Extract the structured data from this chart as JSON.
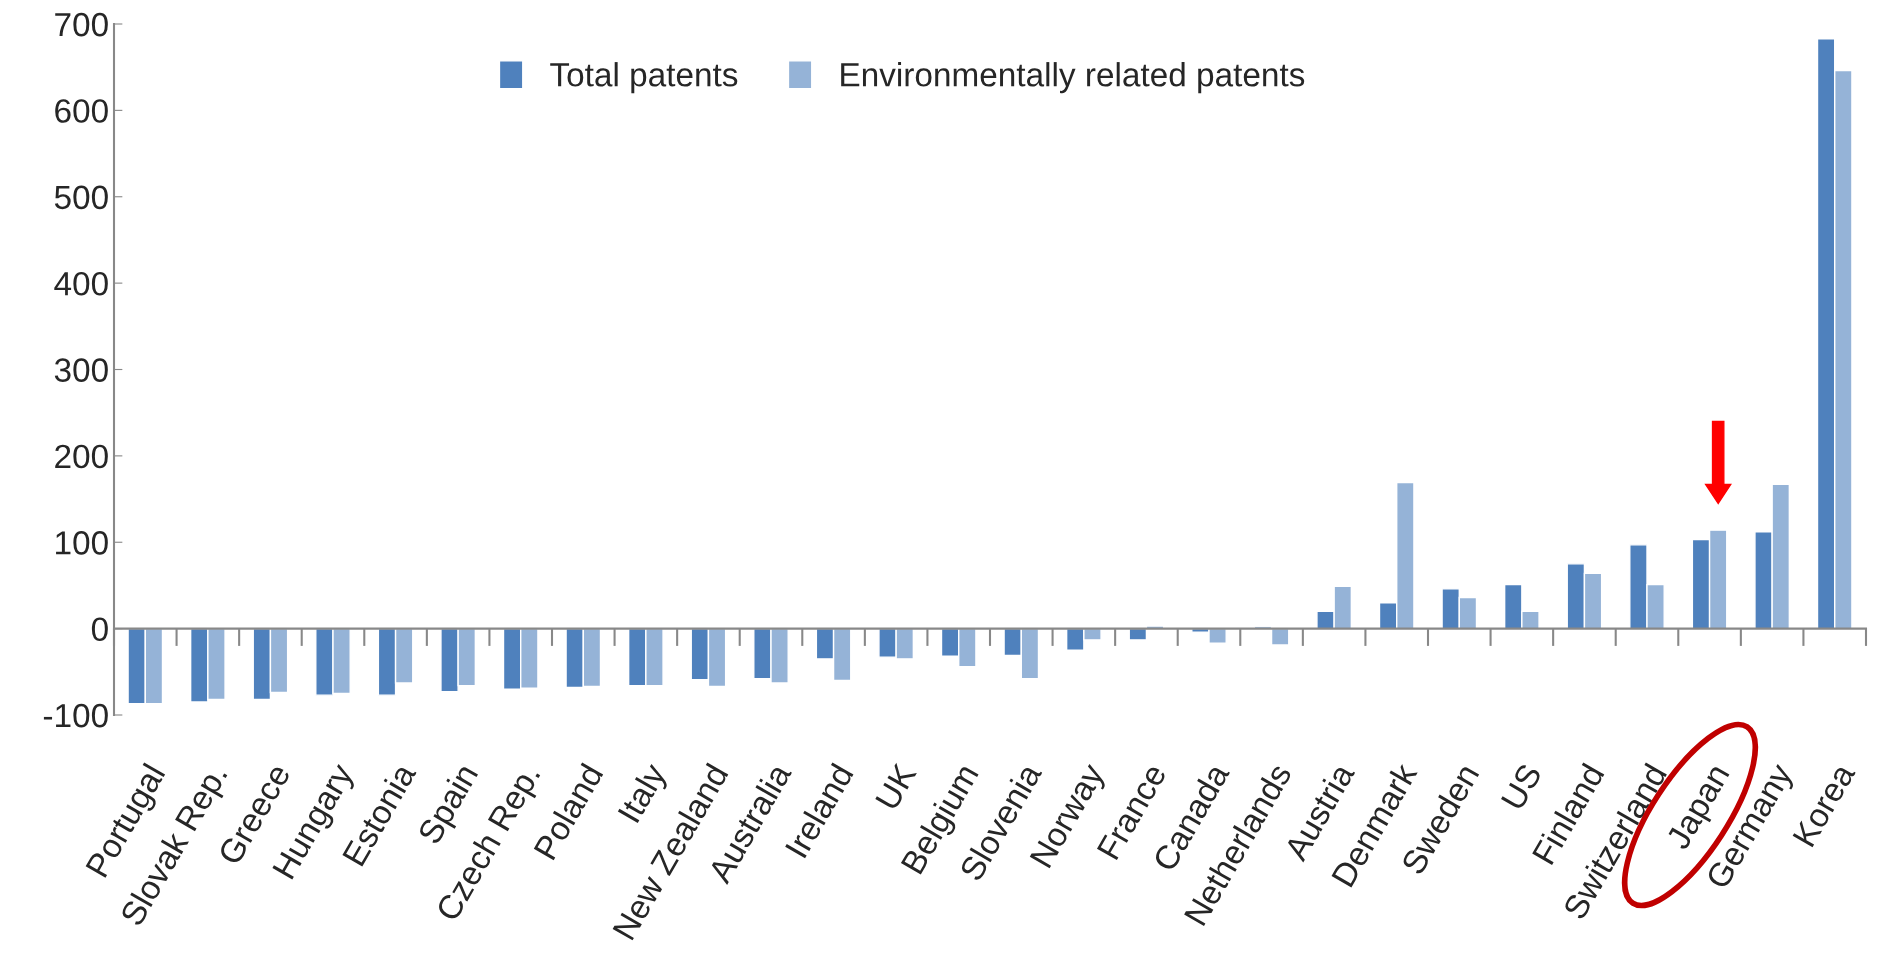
{
  "chart_data": {
    "type": "bar",
    "categories": [
      "Portugal",
      "Slovak Rep.",
      "Greece",
      "Hungary",
      "Estonia",
      "Spain",
      "Czech Rep.",
      "Poland",
      "Italy",
      "New Zealand",
      "Australia",
      "Ireland",
      "UK",
      "Belgium",
      "Slovenia",
      "Norway",
      "France",
      "Canada",
      "Netherlands",
      "Austria",
      "Denmark",
      "Sweden",
      "US",
      "Finland",
      "Switzerland",
      "Japan",
      "Germany",
      "Korea"
    ],
    "series": [
      {
        "name": "Total patents",
        "color": "#4f81bd",
        "values": [
          -87,
          -85,
          -82,
          -77,
          -77,
          -73,
          -70,
          -68,
          -66,
          -59,
          -58,
          -35,
          -33,
          -32,
          -31,
          -25,
          -13,
          -4,
          2,
          20,
          30,
          46,
          51,
          75,
          97,
          103,
          112,
          683
        ]
      },
      {
        "name": "Environmentally related patents",
        "color": "#95b3d7",
        "values": [
          -87,
          -82,
          -74,
          -75,
          -63,
          -66,
          -69,
          -67,
          -66,
          -67,
          -63,
          -60,
          -35,
          -44,
          -58,
          -13,
          3,
          -17,
          -19,
          49,
          169,
          36,
          20,
          64,
          51,
          114,
          167,
          646
        ]
      }
    ],
    "ylim": [
      -100,
      700
    ],
    "yticks": [
      -100,
      0,
      100,
      200,
      300,
      400,
      500,
      600,
      700
    ],
    "legend": "top"
  }
}
